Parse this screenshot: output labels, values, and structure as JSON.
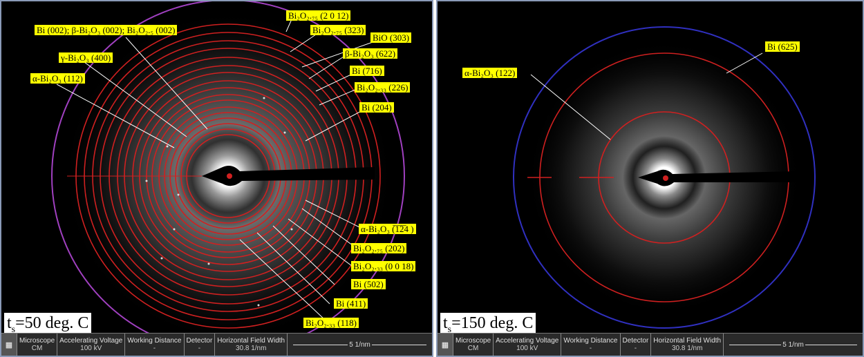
{
  "left": {
    "temperature": {
      "prefix": "t",
      "sub": "s",
      "text": "=50 deg. C"
    },
    "labels": [
      "Bi₂O₂.₇₅ (2 0 12)",
      "Bi (002); β-Bi₂O₃ (002); Bi₂O₂.₅ (002)",
      "Bi₂O₂.₇₅ (323)",
      "BiO (303)",
      "γ-Bi₂O₃ (400)",
      "β-Bi₂O₃ (622)",
      "α-Bi₂O₃ (112)",
      "Bi (716)",
      "Bi₂O₂.₃₃ (226)",
      "Bi (204)",
      "α-Bi₂O₃ (̅1̅2̅4 )",
      "Bi₂O₂.₇₅ (202)",
      "Bi₂O₂.₃₃ (0 0 18)",
      "Bi (502)",
      "Bi (411)",
      "Bi₂O₂.₃₃ (118)"
    ],
    "info": {
      "microscope": "Microscope",
      "microscope_val": "CM",
      "voltage": "Accelerating Voltage",
      "voltage_val": "100 kV",
      "wd": "Working Distance",
      "wd_val": "-",
      "detector": "Detector",
      "detector_val": "-",
      "hfw": "Horizontal Field Width",
      "hfw_val": "30.8 1/nm",
      "scale": "5 1/nm"
    }
  },
  "right": {
    "temperature": {
      "prefix": "t",
      "sub": "s",
      "text": "=150 deg. C"
    },
    "labels": [
      "Bi (625)",
      "α-Bi₂O₃ (122)"
    ],
    "info": {
      "microscope": "Microscope",
      "microscope_val": "CM",
      "voltage": "Accelerating Voltage",
      "voltage_val": "100 kV",
      "wd": "Working Distance",
      "wd_val": "-",
      "detector": "Detector",
      "detector_val": "-",
      "hfw": "Horizontal Field Width",
      "hfw_val": "30.8 1/nm",
      "scale": "5 1/nm"
    }
  },
  "colors": {
    "ring_red": "#d02020",
    "outer_left": "#a040c0",
    "outer_right": "#3030c0",
    "label_bg": "#ffff00"
  }
}
